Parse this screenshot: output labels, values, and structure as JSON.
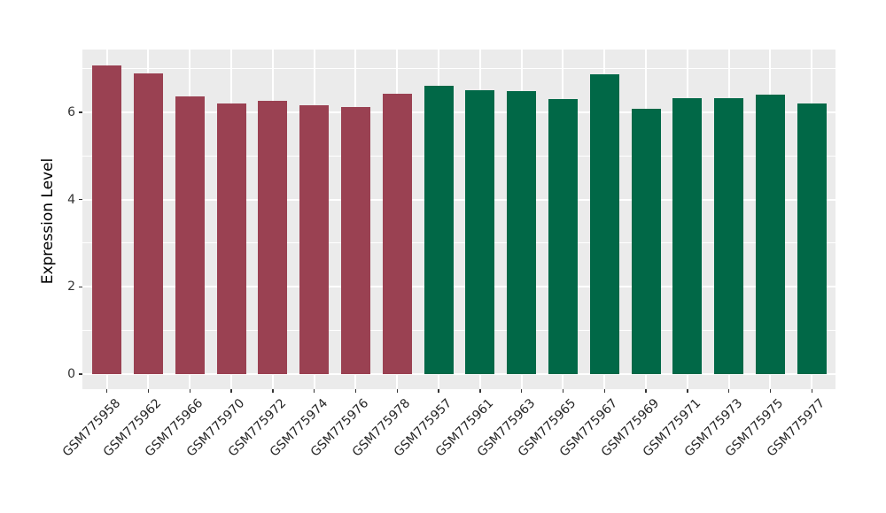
{
  "chart_data": {
    "type": "bar",
    "title": "",
    "ylabel": "Expression Level",
    "xlabel": "",
    "ylim": [
      0,
      7.44
    ],
    "yticks": [
      0,
      2,
      4,
      6
    ],
    "yticks_minor": [
      1,
      3,
      5,
      7
    ],
    "grid": "on",
    "legend_position": "none",
    "panel_bg_color": "#EBEBEB",
    "grid_color": "#FFFFFF",
    "tick_color": "#333333",
    "group_colors": {
      "maroon": "#9A4152",
      "green": "#016847"
    },
    "categories": [
      "GSM775958",
      "GSM775962",
      "GSM775966",
      "GSM775970",
      "GSM775972",
      "GSM775974",
      "GSM775976",
      "GSM775978",
      "GSM775957",
      "GSM775961",
      "GSM775963",
      "GSM775965",
      "GSM775967",
      "GSM775969",
      "GSM775971",
      "GSM775973",
      "GSM775975",
      "GSM775977"
    ],
    "values": [
      7.08,
      6.88,
      6.37,
      6.21,
      6.26,
      6.15,
      6.11,
      6.43,
      6.61,
      6.51,
      6.49,
      6.31,
      6.86,
      6.08,
      6.32,
      6.32,
      6.4,
      6.2
    ],
    "bar_groups": [
      "maroon",
      "maroon",
      "maroon",
      "maroon",
      "maroon",
      "maroon",
      "maroon",
      "maroon",
      "green",
      "green",
      "green",
      "green",
      "green",
      "green",
      "green",
      "green",
      "green",
      "green"
    ]
  }
}
